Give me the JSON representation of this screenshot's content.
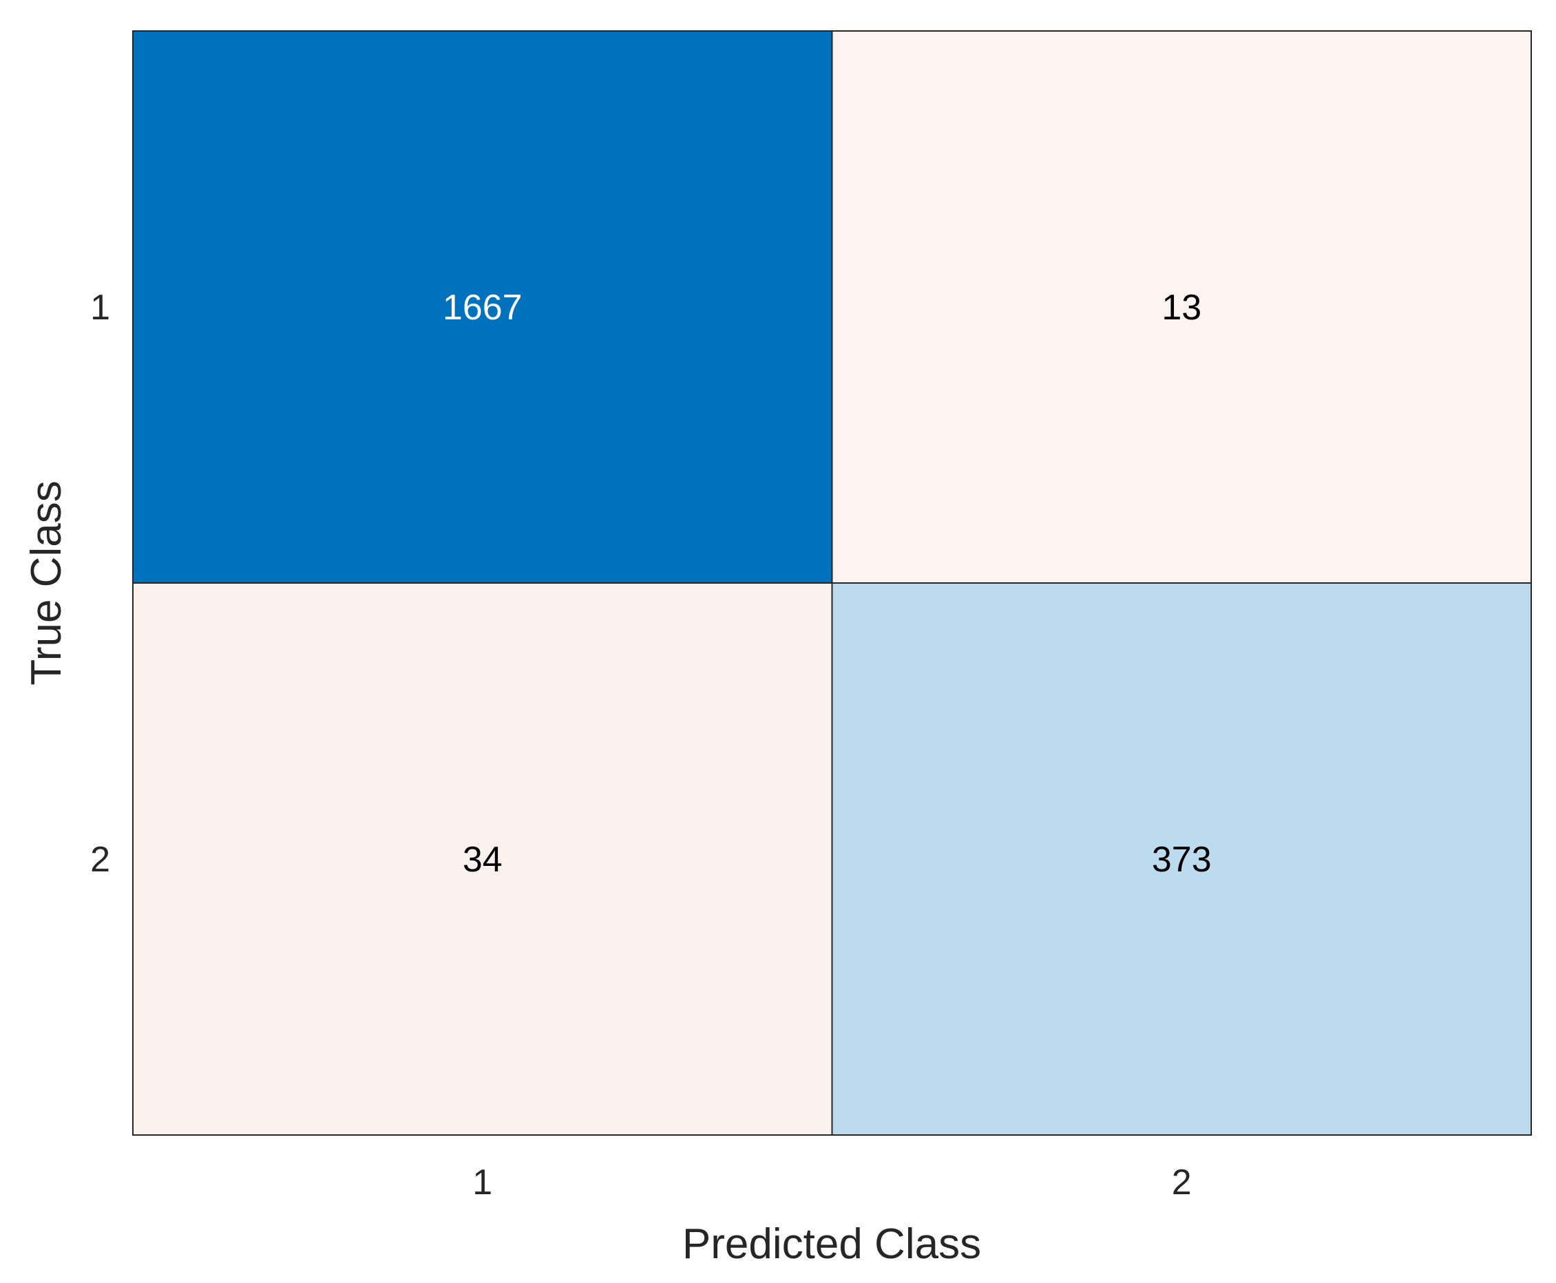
{
  "chart_data": {
    "type": "heatmap",
    "title": "",
    "xlabel": "Predicted Class",
    "ylabel": "True Class",
    "x_categories": [
      "1",
      "2"
    ],
    "y_categories": [
      "1",
      "2"
    ],
    "values": [
      [
        1667,
        13
      ],
      [
        34,
        373
      ]
    ],
    "cell_colors": [
      [
        "#0072BD",
        "#FDF4F1"
      ],
      [
        "#FBF2EE",
        "#BCDBEE"
      ]
    ],
    "cell_text_colors": [
      [
        "#FFFFFF",
        "#000000"
      ],
      [
        "#000000",
        "#000000"
      ]
    ],
    "grid": true
  }
}
